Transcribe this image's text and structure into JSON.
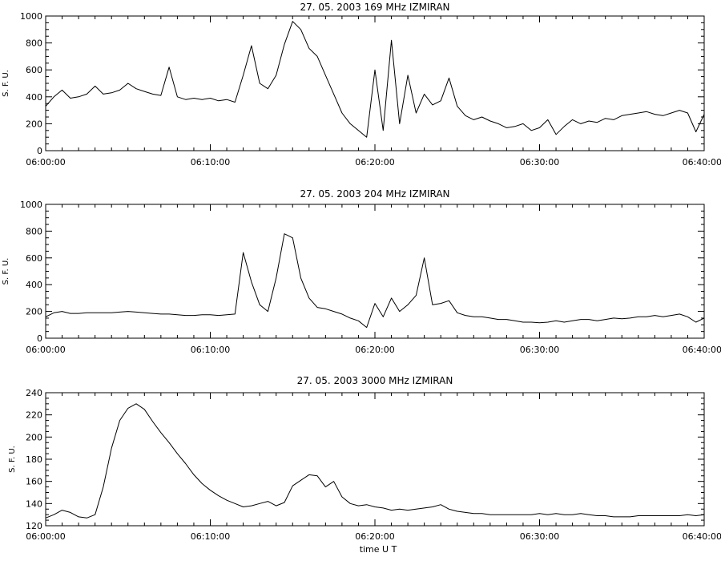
{
  "chart_data": [
    {
      "type": "line",
      "title": "27.  05.  2003    169  MHz    IZMIRAN",
      "ylabel": "S. F. U.",
      "xlabel": "",
      "xlim": [
        "06:00:00",
        "06:40:00"
      ],
      "ylim": [
        0,
        1000
      ],
      "yticks": [
        0,
        200,
        400,
        600,
        800,
        1000
      ],
      "xticks": [
        "06:00:00",
        "06:10:00",
        "06:20:00",
        "06:30:00",
        "06:40:00"
      ],
      "grid": false,
      "series": [
        {
          "x_minutes": [
            0,
            0.5,
            1,
            1.5,
            2,
            2.5,
            3,
            3.5,
            4,
            4.5,
            5,
            5.5,
            6,
            6.5,
            7,
            7.5,
            8,
            8.5,
            9,
            9.5,
            10,
            10.5,
            11,
            11.5,
            12,
            12.5,
            13,
            13.5,
            14,
            14.5,
            15,
            15.5,
            16,
            16.5,
            17,
            17.5,
            18,
            18.5,
            19,
            19.5,
            20,
            20.5,
            21,
            21.5,
            22,
            22.5,
            23,
            23.5,
            24,
            24.5,
            25,
            25.5,
            26,
            26.5,
            27,
            27.5,
            28,
            28.5,
            29,
            29.5,
            30,
            30.5,
            31,
            31.5,
            32,
            32.5,
            33,
            33.5,
            34,
            34.5,
            35,
            35.5,
            36,
            36.5,
            37,
            37.5,
            38,
            38.5,
            39,
            39.5,
            40
          ],
          "values": [
            330,
            400,
            450,
            390,
            400,
            420,
            480,
            420,
            430,
            450,
            500,
            460,
            440,
            420,
            410,
            620,
            400,
            380,
            390,
            380,
            390,
            370,
            380,
            360,
            560,
            780,
            500,
            460,
            560,
            790,
            960,
            900,
            760,
            700,
            560,
            420,
            280,
            200,
            150,
            100,
            600,
            150,
            820,
            200,
            560,
            280,
            420,
            340,
            370,
            540,
            330,
            260,
            230,
            250,
            220,
            200,
            170,
            180,
            200,
            150,
            170,
            230,
            120,
            180,
            230,
            200,
            220,
            210,
            240,
            230,
            260,
            270,
            280,
            290,
            270,
            260,
            280,
            300,
            280,
            140,
            270
          ]
        }
      ]
    },
    {
      "type": "line",
      "title": "27.  05.  2003    204  MHz    IZMIRAN",
      "ylabel": "S. F. U.",
      "xlabel": "",
      "xlim": [
        "06:00:00",
        "06:40:00"
      ],
      "ylim": [
        0,
        1000
      ],
      "yticks": [
        0,
        200,
        400,
        600,
        800,
        1000
      ],
      "xticks": [
        "06:00:00",
        "06:10:00",
        "06:20:00",
        "06:30:00",
        "06:40:00"
      ],
      "grid": false,
      "series": [
        {
          "x_minutes": [
            0,
            0.5,
            1,
            1.5,
            2,
            2.5,
            3,
            3.5,
            4,
            4.5,
            5,
            5.5,
            6,
            6.5,
            7,
            7.5,
            8,
            8.5,
            9,
            9.5,
            10,
            10.5,
            11,
            11.5,
            12,
            12.5,
            13,
            13.5,
            14,
            14.5,
            15,
            15.5,
            16,
            16.5,
            17,
            17.5,
            18,
            18.5,
            19,
            19.5,
            20,
            20.5,
            21,
            21.5,
            22,
            22.5,
            23,
            23.5,
            24,
            24.5,
            25,
            25.5,
            26,
            26.5,
            27,
            27.5,
            28,
            28.5,
            29,
            29.5,
            30,
            30.5,
            31,
            31.5,
            32,
            32.5,
            33,
            33.5,
            34,
            34.5,
            35,
            35.5,
            36,
            36.5,
            37,
            37.5,
            38,
            38.5,
            39,
            39.5,
            40
          ],
          "values": [
            160,
            190,
            200,
            185,
            185,
            190,
            190,
            190,
            190,
            195,
            200,
            195,
            190,
            185,
            180,
            180,
            175,
            170,
            170,
            175,
            175,
            170,
            175,
            180,
            640,
            420,
            250,
            200,
            450,
            780,
            750,
            450,
            300,
            230,
            220,
            200,
            180,
            150,
            130,
            80,
            260,
            160,
            300,
            200,
            250,
            320,
            600,
            250,
            260,
            280,
            190,
            170,
            160,
            160,
            150,
            140,
            140,
            130,
            120,
            120,
            115,
            120,
            130,
            120,
            130,
            140,
            140,
            130,
            140,
            150,
            145,
            150,
            160,
            160,
            170,
            160,
            170,
            180,
            160,
            120,
            150
          ]
        }
      ]
    },
    {
      "type": "line",
      "title": "27.  05.  2003    3000  MHz    IZMIRAN",
      "ylabel": "S. F. U.",
      "xlabel": "time  U T",
      "xlim": [
        "06:00:00",
        "06:40:00"
      ],
      "ylim": [
        120,
        240
      ],
      "yticks": [
        120,
        140,
        160,
        180,
        200,
        220,
        240
      ],
      "xticks": [
        "06:00:00",
        "06:10:00",
        "06:20:00",
        "06:30:00",
        "06:40:00"
      ],
      "grid": false,
      "series": [
        {
          "x_minutes": [
            0,
            0.5,
            1,
            1.5,
            2,
            2.5,
            3,
            3.5,
            4,
            4.5,
            5,
            5.5,
            6,
            6.5,
            7,
            7.5,
            8,
            8.5,
            9,
            9.5,
            10,
            10.5,
            11,
            11.5,
            12,
            12.5,
            13,
            13.5,
            14,
            14.5,
            15,
            15.5,
            16,
            16.5,
            17,
            17.5,
            18,
            18.5,
            19,
            19.5,
            20,
            20.5,
            21,
            21.5,
            22,
            22.5,
            23,
            23.5,
            24,
            24.5,
            25,
            25.5,
            26,
            26.5,
            27,
            27.5,
            28,
            28.5,
            29,
            29.5,
            30,
            30.5,
            31,
            31.5,
            32,
            32.5,
            33,
            33.5,
            34,
            34.5,
            35,
            35.5,
            36,
            36.5,
            37,
            37.5,
            38,
            38.5,
            39,
            39.5,
            40
          ],
          "values": [
            127,
            130,
            134,
            132,
            128,
            127,
            130,
            155,
            190,
            215,
            226,
            230,
            225,
            214,
            204,
            195,
            185,
            176,
            166,
            158,
            152,
            147,
            143,
            140,
            137,
            138,
            140,
            142,
            138,
            141,
            156,
            161,
            166,
            165,
            155,
            160,
            146,
            140,
            138,
            139,
            137,
            136,
            134,
            135,
            134,
            135,
            136,
            137,
            139,
            135,
            133,
            132,
            131,
            131,
            130,
            130,
            130,
            130,
            130,
            130,
            131,
            130,
            131,
            130,
            130,
            131,
            130,
            129,
            129,
            128,
            128,
            128,
            129,
            129,
            129,
            129,
            129,
            129,
            130,
            129,
            130
          ]
        }
      ]
    }
  ]
}
